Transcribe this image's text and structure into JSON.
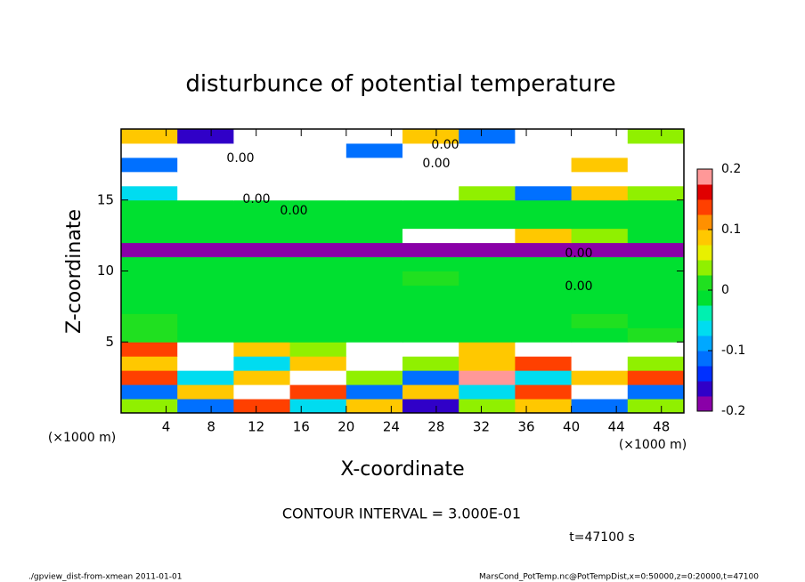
{
  "chart_data": {
    "type": "heatmap",
    "title": "disturbunce of potential temperature",
    "xlabel": "X-coordinate",
    "ylabel": "Z-coordinate",
    "x_unit": "(×1000 m)",
    "y_unit": "(×1000 m)",
    "x": [
      0,
      5,
      10,
      15,
      20,
      25,
      30,
      35,
      40,
      45,
      50
    ],
    "y": [
      0,
      1,
      2,
      3,
      4,
      5,
      6,
      7,
      8,
      9,
      10,
      11,
      12,
      13,
      14,
      15,
      16,
      17,
      18,
      19,
      20
    ],
    "z": [
      [
        0.05,
        -0.1,
        0.15,
        -0.05,
        0.1,
        -0.15,
        0.05,
        0.1,
        -0.1,
        0.05
      ],
      [
        -0.1,
        0.1,
        0.3,
        0.15,
        -0.1,
        0.1,
        -0.05,
        0.15,
        0.3,
        -0.1
      ],
      [
        0.15,
        -0.05,
        0.1,
        0.3,
        0.05,
        -0.1,
        0.2,
        -0.05,
        0.1,
        0.15
      ],
      [
        0.1,
        0.3,
        -0.05,
        0.1,
        0.3,
        0.05,
        0.1,
        0.15,
        0.3,
        0.05
      ],
      [
        0.15,
        0.3,
        0.1,
        0.05,
        0.3,
        0.3,
        0.1,
        0.3,
        0.3,
        0.3
      ],
      [
        0.01,
        0,
        0,
        0,
        0,
        0,
        0,
        0,
        0,
        0.01
      ],
      [
        0.01,
        0,
        0,
        0,
        0,
        0,
        0,
        0,
        0.01,
        0
      ],
      [
        0,
        0,
        0,
        0,
        0,
        0,
        0,
        0,
        0,
        0
      ],
      [
        0,
        0,
        0,
        0,
        0,
        0,
        0,
        0,
        0,
        0
      ],
      [
        0,
        0,
        0,
        0,
        0,
        0.01,
        0,
        0,
        0,
        0
      ],
      [
        0,
        0,
        0,
        0,
        0,
        0,
        0,
        0,
        0,
        0
      ],
      [
        -0.19,
        -0.19,
        -0.19,
        -0.19,
        -0.19,
        -0.19,
        -0.19,
        -0.19,
        -0.19,
        -0.19
      ],
      [
        0,
        0,
        0,
        0,
        0,
        0.3,
        0.3,
        0.1,
        0.05,
        0
      ],
      [
        0,
        0,
        0,
        0,
        0,
        0,
        0,
        0,
        0,
        0
      ],
      [
        0,
        0,
        0,
        0,
        0,
        0,
        0,
        0,
        0,
        0
      ],
      [
        -0.05,
        0.3,
        0.3,
        0.3,
        0.3,
        0.3,
        0.05,
        -0.1,
        0.1,
        0.05
      ],
      [
        0.3,
        0.3,
        0.3,
        0.3,
        0.3,
        0.3,
        0.3,
        0.3,
        0.3,
        0.3
      ],
      [
        -0.1,
        0.3,
        0.3,
        0.3,
        0.3,
        0.3,
        0.3,
        0.3,
        0.1,
        0.3
      ],
      [
        0.3,
        0.3,
        0.3,
        0.3,
        -0.1,
        0.3,
        0.3,
        0.3,
        0.3,
        0.3
      ],
      [
        0.1,
        -0.15,
        0.3,
        0.3,
        0.3,
        0.1,
        -0.1,
        0.3,
        0.3,
        0.05
      ]
    ],
    "levels": [
      -0.2,
      -0.175,
      -0.15,
      -0.125,
      -0.1,
      -0.075,
      -0.05,
      -0.025,
      0,
      0.025,
      0.05,
      0.075,
      0.1,
      0.125,
      0.15,
      0.175,
      0.2
    ],
    "colors": [
      "#8a00a8",
      "#3000c8",
      "#0030ff",
      "#0070ff",
      "#00a8ff",
      "#00dcf0",
      "#00f0b0",
      "#00e030",
      "#20e020",
      "#90f000",
      "#e8f000",
      "#ffc800",
      "#ff9000",
      "#ff4000",
      "#e00000",
      "#ff9898"
    ],
    "out_of_range_color": "#ffffff",
    "xlim": [
      0,
      50
    ],
    "ylim": [
      0,
      20
    ],
    "xticks": [
      4,
      8,
      12,
      16,
      20,
      24,
      28,
      32,
      36,
      40,
      44,
      48
    ],
    "yticks": [
      5,
      10,
      15
    ],
    "colorbar_ticks": [
      -0.2,
      -0.1,
      0,
      0.1,
      0.2
    ],
    "contour_labels": [
      "0.00",
      "0.00",
      "0.00",
      "0.00",
      "0.00",
      "0.00",
      "0.00"
    ],
    "contour_interval": "CONTOUR INTERVAL = 3.000E-01",
    "time": "t=47100 s",
    "footer_left": "./gpview_dist-from-xmean   2011-01-01",
    "footer_right": "MarsCond_PotTemp.nc@PotTempDist,x=0:50000,z=0:20000,t=47100"
  }
}
